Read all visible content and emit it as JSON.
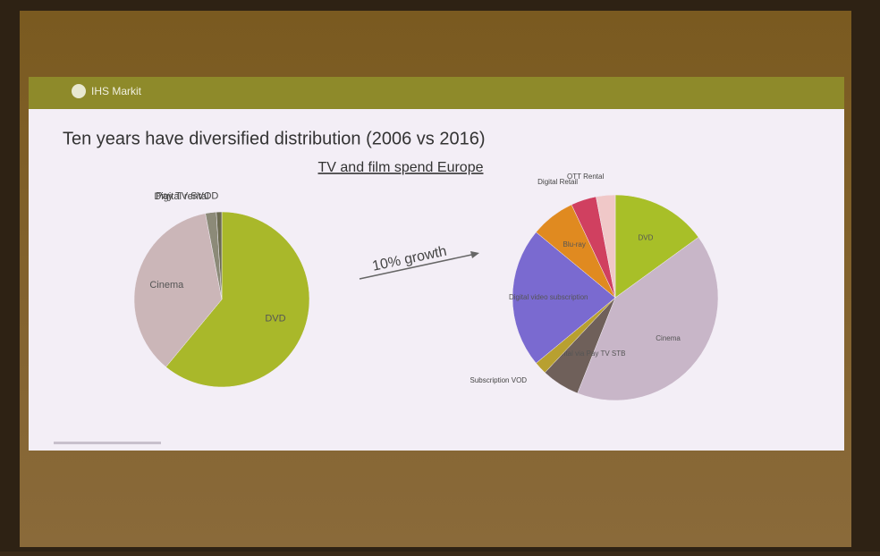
{
  "header": {
    "logo": "IHS Markit"
  },
  "title": "Ten years have diversified distribution (2006 vs 2016)",
  "subtitle": "TV and film spend Europe",
  "annotation": "10% growth",
  "chart_data": [
    {
      "type": "pie",
      "categories": [
        "DVD",
        "Cinema",
        "Digital rental",
        "Pay TV SVOD"
      ],
      "values": [
        61,
        36,
        2,
        1
      ],
      "colors": [
        "#a9b82a",
        "#cbb6b8",
        "#8c8a78",
        "#6b6a50"
      ]
    },
    {
      "type": "pie",
      "categories": [
        "DVD",
        "Cinema",
        "Digital rental via Pay TV STB",
        "Subscription VOD",
        "Digital video subscription",
        "Blu-ray",
        "Digital Retail",
        "OTT Rental"
      ],
      "values": [
        15,
        41,
        6,
        2,
        22,
        7,
        4,
        3
      ],
      "colors": [
        "#a8bf28",
        "#c8b6c8",
        "#6f605a",
        "#b8a030",
        "#7a6ad0",
        "#e08a20",
        "#d04060",
        "#f0c8c8"
      ]
    }
  ]
}
